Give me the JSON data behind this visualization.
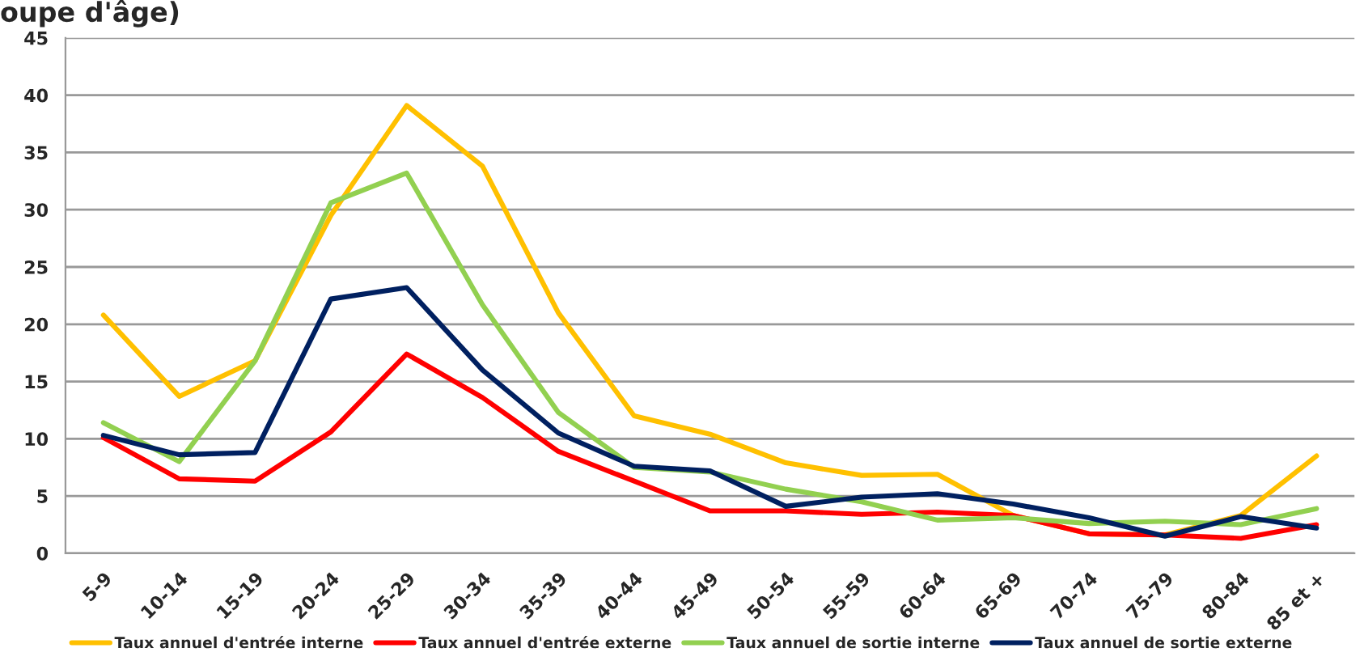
{
  "chart_data": {
    "type": "line",
    "title": "oupe d'âge)",
    "categories": [
      "5-9",
      "10-14",
      "15-19",
      "20-24",
      "25-29",
      "30-34",
      "35-39",
      "40-44",
      "45-49",
      "50-54",
      "55-59",
      "60-64",
      "65-69",
      "70-74",
      "75-79",
      "80-84",
      "85 et +"
    ],
    "series": [
      {
        "name": "Taux annuel d'entrée interne",
        "color": "#ffc000",
        "values": [
          20.8,
          13.7,
          16.8,
          29.5,
          39.1,
          33.8,
          21.0,
          12.0,
          10.4,
          7.9,
          6.8,
          6.9,
          3.3,
          1.7,
          1.6,
          3.3,
          8.5
        ]
      },
      {
        "name": "Taux annuel d'entrée externe",
        "color": "#ff0000",
        "values": [
          10.1,
          6.5,
          6.3,
          10.6,
          17.4,
          13.6,
          8.9,
          6.3,
          3.7,
          3.7,
          3.4,
          3.6,
          3.3,
          1.7,
          1.6,
          1.3,
          2.5
        ]
      },
      {
        "name": "Taux annuel de sortie interne",
        "color": "#92d050",
        "values": [
          11.4,
          8.0,
          16.8,
          30.6,
          33.2,
          21.7,
          12.3,
          7.5,
          7.1,
          5.6,
          4.5,
          2.9,
          3.1,
          2.6,
          2.8,
          2.5,
          3.9
        ]
      },
      {
        "name": "Taux annuel de sortie externe",
        "color": "#002060",
        "values": [
          10.3,
          8.6,
          8.8,
          22.2,
          23.2,
          16.0,
          10.5,
          7.6,
          7.2,
          4.1,
          4.9,
          5.2,
          4.3,
          3.1,
          1.5,
          3.2,
          2.2
        ]
      }
    ],
    "ylim": [
      0,
      45
    ],
    "yticks": [
      0,
      5,
      10,
      15,
      20,
      25,
      30,
      35,
      40,
      45
    ],
    "grid": "y",
    "legend": "bottom",
    "marker": "none",
    "line_style": "solid"
  }
}
